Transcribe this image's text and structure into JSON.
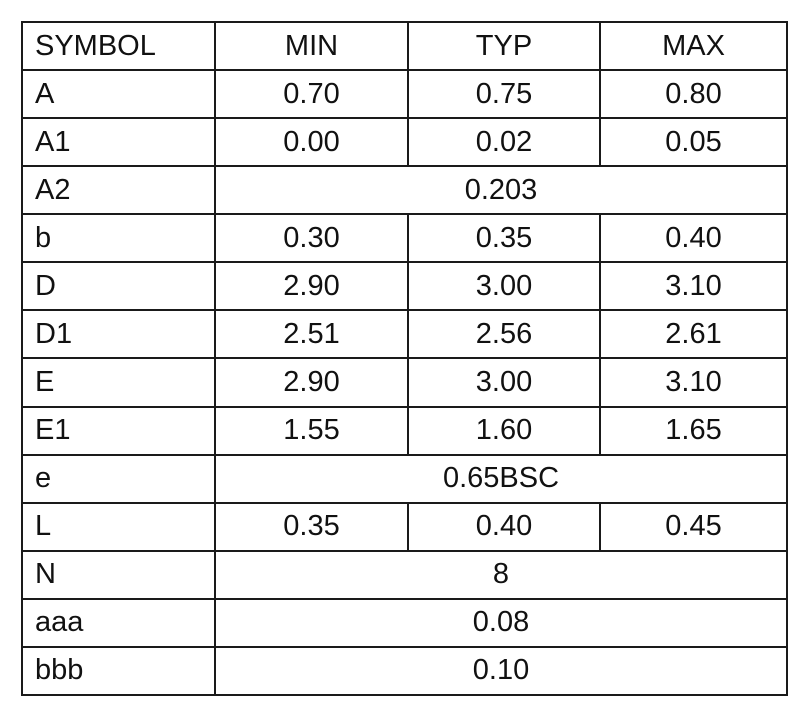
{
  "table": {
    "headers": [
      "SYMBOL",
      "MIN",
      "TYP",
      "MAX"
    ],
    "rows": [
      {
        "symbol": "A",
        "min": "0.70",
        "typ": "0.75",
        "max": "0.80"
      },
      {
        "symbol": "A1",
        "min": "0.00",
        "typ": "0.02",
        "max": "0.05"
      },
      {
        "symbol": "A2",
        "span": "0.203"
      },
      {
        "symbol": "b",
        "min": "0.30",
        "typ": "0.35",
        "max": "0.40"
      },
      {
        "symbol": "D",
        "min": "2.90",
        "typ": "3.00",
        "max": "3.10"
      },
      {
        "symbol": "D1",
        "min": "2.51",
        "typ": "2.56",
        "max": "2.61"
      },
      {
        "symbol": "E",
        "min": "2.90",
        "typ": "3.00",
        "max": "3.10"
      },
      {
        "symbol": "E1",
        "min": "1.55",
        "typ": "1.60",
        "max": "1.65"
      },
      {
        "symbol": "e",
        "span": "0.65BSC"
      },
      {
        "symbol": "L",
        "min": "0.35",
        "typ": "0.40",
        "max": "0.45"
      },
      {
        "symbol": "N",
        "span": "8"
      },
      {
        "symbol": "aaa",
        "span": "0.08"
      },
      {
        "symbol": "bbb",
        "span": "0.10"
      }
    ]
  }
}
